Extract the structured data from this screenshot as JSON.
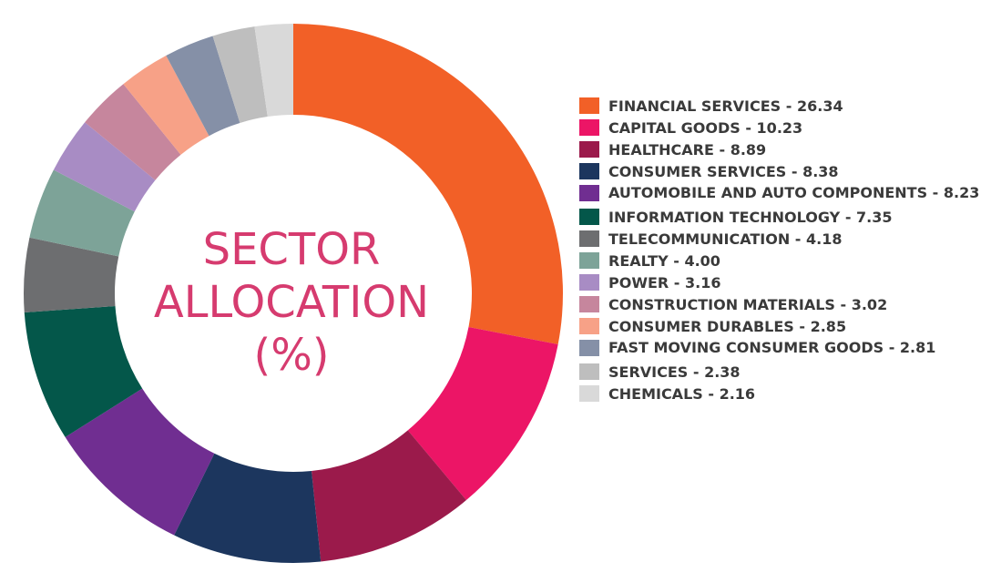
{
  "chart_data": {
    "type": "pie",
    "variant": "donut",
    "title": [
      "SECTOR",
      "ALLOCATION",
      "(%)"
    ],
    "legend_placement": "right",
    "slices": [
      {
        "label": "FINANCIAL SERVICES",
        "value": 26.34,
        "value_text": "26.34",
        "color": "#f26027"
      },
      {
        "label": "CAPITAL GOODS",
        "value": 10.23,
        "value_text": "10.23",
        "color": "#ec1566"
      },
      {
        "label": "HEALTHCARE",
        "value": 8.89,
        "value_text": "8.89",
        "color": "#9b1a4b"
      },
      {
        "label": "CONSUMER SERVICES",
        "value": 8.38,
        "value_text": "8.38",
        "color": "#1c365e"
      },
      {
        "label": "AUTOMOBILE AND AUTO COMPONENTS",
        "value": 8.23,
        "value_text": "8.23",
        "color": "#702e91"
      },
      {
        "label": "INFORMATION TECHNOLOGY",
        "value": 7.35,
        "value_text": "7.35",
        "color": "#04574a"
      },
      {
        "label": "TELECOMMUNICATION",
        "value": 4.18,
        "value_text": "4.18",
        "color": "#6d6e70"
      },
      {
        "label": "REALTY",
        "value": 4.0,
        "value_text": "4.00",
        "color": "#7da398"
      },
      {
        "label": "POWER",
        "value": 3.16,
        "value_text": "3.16",
        "color": "#a88cc4"
      },
      {
        "label": "CONSTRUCTION MATERIALS",
        "value": 3.02,
        "value_text": "3.02",
        "color": "#c6869d"
      },
      {
        "label": "CONSUMER DURABLES",
        "value": 2.85,
        "value_text": "2.85",
        "color": "#f7a187"
      },
      {
        "label": "FAST MOVING CONSUMER GOODS",
        "value": 2.81,
        "value_text": "2.81",
        "color": "#8590a7"
      },
      {
        "label": "SERVICES",
        "value": 2.38,
        "value_text": "2.38",
        "color": "#bebebe"
      },
      {
        "label": "CHEMICALS",
        "value": 2.16,
        "value_text": "2.16",
        "color": "#d9d9d9"
      }
    ]
  }
}
